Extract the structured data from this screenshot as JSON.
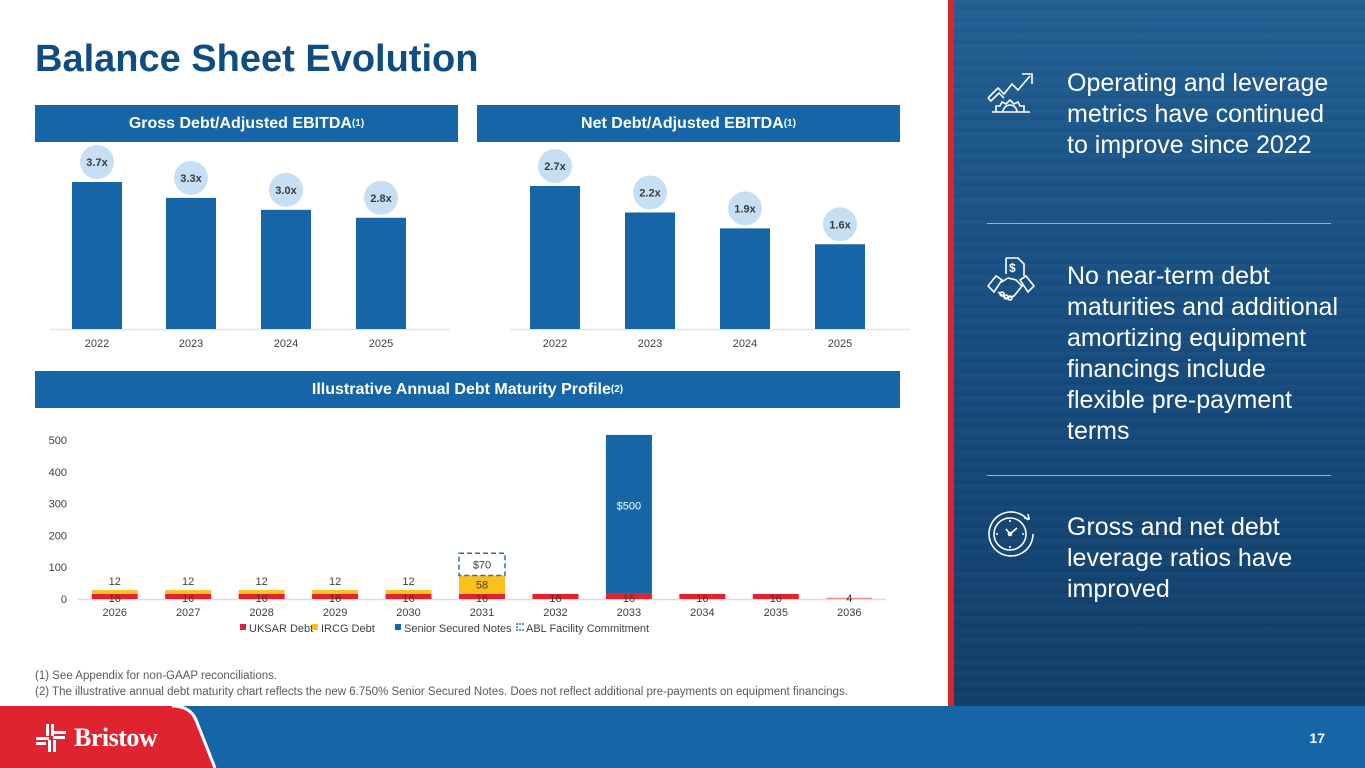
{
  "title": "Balance Sheet Evolution",
  "chart_data": [
    {
      "type": "bar",
      "title": "Gross Debt/Adjusted EBITDA",
      "title_sup": "(1)",
      "categories": [
        "2022",
        "2023",
        "2024",
        "2025"
      ],
      "values": [
        3.7,
        3.3,
        3.0,
        2.8
      ],
      "labels": [
        "3.7x",
        "3.3x",
        "3.0x",
        "2.8x"
      ],
      "ylim": [
        0,
        3.7
      ],
      "color": "#1565a7",
      "label_bubble_color": "#c7dff4"
    },
    {
      "type": "bar",
      "title": "Net Debt/Adjusted EBITDA",
      "title_sup": "(1)",
      "categories": [
        "2022",
        "2023",
        "2024",
        "2025"
      ],
      "values": [
        2.7,
        2.2,
        1.9,
        1.6
      ],
      "labels": [
        "2.7x",
        "2.2x",
        "1.9x",
        "1.6x"
      ],
      "ylim": [
        0,
        2.7
      ],
      "color": "#1565a7",
      "label_bubble_color": "#c7dff4"
    },
    {
      "type": "bar",
      "stacked": true,
      "title": "Illustrative Annual Debt Maturity Profile",
      "title_sup": "(2)",
      "categories": [
        "2026",
        "2027",
        "2028",
        "2029",
        "2030",
        "2031",
        "2032",
        "2033",
        "2034",
        "2035",
        "2036"
      ],
      "series": [
        {
          "name": "UKSAR Debt",
          "color": "#e0242f",
          "values": [
            16,
            16,
            16,
            16,
            16,
            16,
            16,
            16,
            16,
            16,
            4
          ],
          "labels": [
            "16",
            "16",
            "16",
            "16",
            "16",
            "16",
            "16",
            "16",
            "16",
            "16",
            "4"
          ]
        },
        {
          "name": "IRCG Debt",
          "color": "#fbc11a",
          "values": [
            12,
            12,
            12,
            12,
            12,
            58,
            0,
            0,
            0,
            0,
            0
          ],
          "labels": [
            "12",
            "12",
            "12",
            "12",
            "12",
            "58",
            "",
            "",
            "",
            "",
            ""
          ]
        },
        {
          "name": "Senior Secured Notes",
          "color": "#1565a7",
          "values": [
            0,
            0,
            0,
            0,
            0,
            0,
            0,
            500,
            0,
            0,
            0
          ],
          "labels": [
            "",
            "",
            "",
            "",
            "",
            "",
            "",
            "$500",
            "",
            "",
            ""
          ]
        },
        {
          "name": "ABL Facility Commitment",
          "color": "#2e6fa8",
          "dashed": true,
          "values": [
            0,
            0,
            0,
            0,
            0,
            70,
            0,
            0,
            0,
            0,
            0
          ],
          "labels": [
            "",
            "",
            "",
            "",
            "",
            "$70",
            "",
            "",
            "",
            "",
            ""
          ]
        }
      ],
      "yticks": [
        "0",
        "100",
        "200",
        "300",
        "400",
        "500"
      ],
      "ylim": [
        0,
        500
      ],
      "legend": "bottom"
    }
  ],
  "points": [
    {
      "icon": "growth-gear-icon",
      "text": "Operating and leverage metrics have continued to improve since 2022"
    },
    {
      "icon": "handshake-dollar-icon",
      "text": "No near-term debt maturities and additional amortizing equipment financings include flexible pre-payment terms"
    },
    {
      "icon": "stopwatch-icon",
      "text": "Gross and net debt leverage ratios have improved"
    }
  ],
  "footnotes": [
    "(1) See Appendix for non-GAAP reconciliations.",
    "(2) The illustrative annual debt maturity chart reflects the new 6.750% Senior Secured Notes. Does not reflect additional pre-payments on equipment financings."
  ],
  "footer": {
    "logo_text": "Bristow",
    "page_number": "17"
  }
}
